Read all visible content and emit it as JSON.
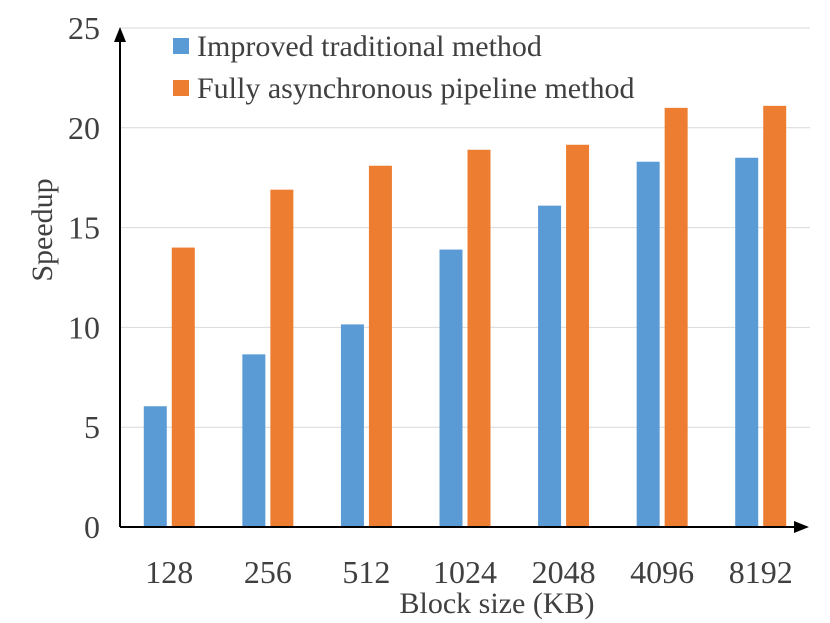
{
  "chart_data": {
    "type": "bar",
    "title": "",
    "xlabel": "Block size (KB)",
    "ylabel": "Speedup",
    "ylim": [
      0,
      25
    ],
    "yticks": [
      0,
      5,
      10,
      15,
      20,
      25
    ],
    "grid": true,
    "legend_position": "top-left",
    "categories": [
      "128",
      "256",
      "512",
      "1024",
      "2048",
      "4096",
      "8192"
    ],
    "series": [
      {
        "name": "Improved traditional method",
        "color": "#5b9bd5",
        "values": [
          6.05,
          8.65,
          10.15,
          13.9,
          16.1,
          18.3,
          18.5
        ]
      },
      {
        "name": "Fully asynchronous pipeline method",
        "color": "#ed7d31",
        "values": [
          14.0,
          16.9,
          18.1,
          18.9,
          19.15,
          21.0,
          21.1
        ]
      }
    ]
  }
}
